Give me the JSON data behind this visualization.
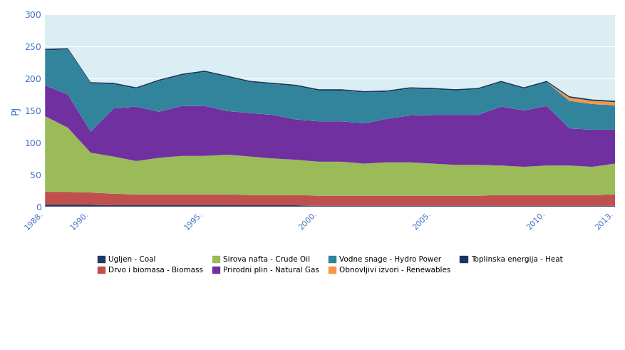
{
  "years": [
    1988,
    1989,
    1990,
    1991,
    1992,
    1993,
    1994,
    1995,
    1996,
    1997,
    1998,
    1999,
    2000,
    2001,
    2002,
    2003,
    2004,
    2005,
    2006,
    2007,
    2008,
    2009,
    2010,
    2011,
    2012,
    2013
  ],
  "coal": [
    3,
    3,
    3,
    2,
    2,
    2,
    2,
    2,
    2,
    2,
    2,
    2,
    1,
    1,
    1,
    1,
    1,
    1,
    1,
    1,
    1,
    1,
    1,
    1,
    1,
    1
  ],
  "biomass": [
    20,
    20,
    19,
    18,
    17,
    17,
    17,
    17,
    17,
    16,
    16,
    16,
    16,
    16,
    16,
    16,
    16,
    16,
    16,
    16,
    17,
    17,
    17,
    17,
    17,
    18
  ],
  "crude_oil": [
    118,
    100,
    62,
    58,
    52,
    57,
    60,
    60,
    62,
    60,
    57,
    55,
    53,
    53,
    50,
    52,
    52,
    50,
    48,
    48,
    46,
    44,
    46,
    46,
    44,
    48
  ],
  "natural_gas": [
    48,
    52,
    33,
    75,
    85,
    72,
    78,
    78,
    68,
    68,
    68,
    63,
    63,
    63,
    63,
    68,
    73,
    76,
    78,
    78,
    92,
    88,
    93,
    58,
    58,
    53
  ],
  "hydro": [
    55,
    70,
    75,
    38,
    28,
    48,
    48,
    53,
    53,
    48,
    48,
    52,
    48,
    48,
    48,
    42,
    42,
    40,
    38,
    40,
    38,
    34,
    37,
    43,
    40,
    38
  ],
  "renewables": [
    0,
    0,
    0,
    0,
    0,
    0,
    0,
    0,
    0,
    0,
    0,
    0,
    0,
    0,
    0,
    0,
    0,
    0,
    0,
    0,
    0,
    0,
    0,
    5,
    5,
    5
  ],
  "heat": [
    2,
    2,
    2,
    2,
    2,
    2,
    2,
    2,
    2,
    2,
    2,
    2,
    2,
    2,
    2,
    2,
    2,
    2,
    2,
    2,
    2,
    2,
    2,
    2,
    2,
    2
  ],
  "colors": {
    "coal": "#1f3864",
    "biomass": "#c0504d",
    "crude_oil": "#9bbb59",
    "natural_gas": "#7030a0",
    "hydro": "#31849b",
    "renewables": "#f79646",
    "heat": "#17375e",
    "background": "#daeef3"
  },
  "ylim": [
    0,
    300
  ],
  "ylabel": "PJ",
  "yticks": [
    0,
    50,
    100,
    150,
    200,
    250,
    300
  ],
  "xticks": [
    1988,
    1990,
    1995,
    2000,
    2005,
    2010,
    2013
  ],
  "legend": [
    {
      "label": "Ugljen - Coal",
      "color": "#1f3864"
    },
    {
      "label": "Drvo i biomasa - Biomass",
      "color": "#c0504d"
    },
    {
      "label": "Sirova nafta - Crude Oil",
      "color": "#9bbb59"
    },
    {
      "label": "Prirodni plin - Natural Gas",
      "color": "#7030a0"
    },
    {
      "label": "Vodne snage - Hydro Power",
      "color": "#31849b"
    },
    {
      "label": "Obnovljivi izvori - Renewables",
      "color": "#f79646"
    },
    {
      "label": "Toplinska energija - Heat",
      "color": "#17375e"
    }
  ]
}
